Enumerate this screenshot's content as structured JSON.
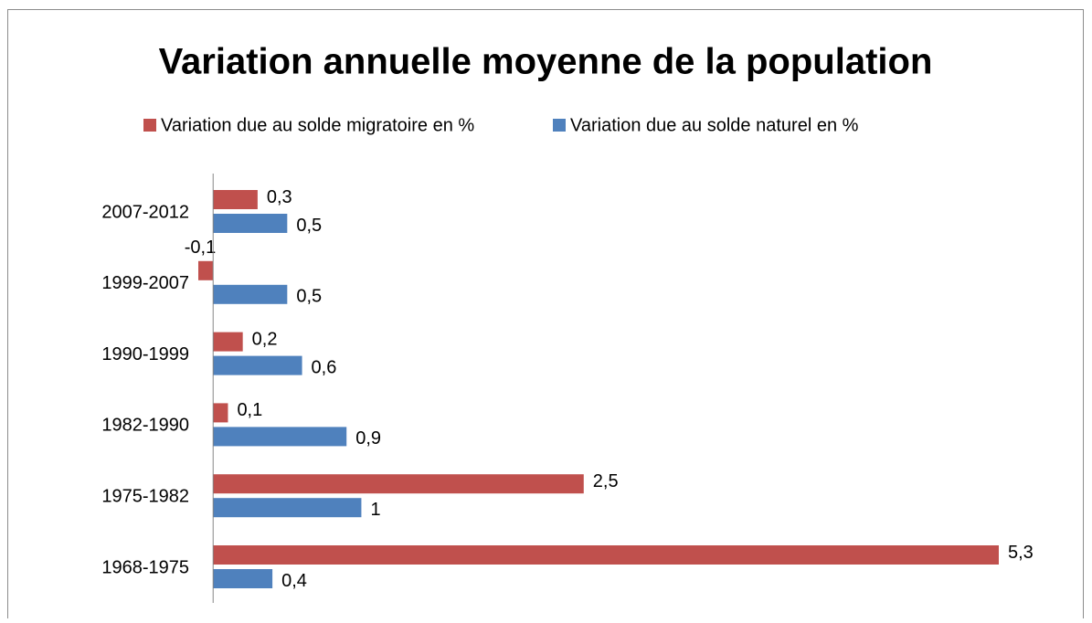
{
  "chart_data": {
    "type": "barh",
    "title": "Variation annuelle moyenne de la population",
    "categories": [
      "2007-2012",
      "1999-2007",
      "1990-1999",
      "1982-1990",
      "1975-1982",
      "1968-1975"
    ],
    "series": [
      {
        "name": "Variation due au solde migratoire en %",
        "color": "#c0504d",
        "values": [
          0.3,
          -0.1,
          0.2,
          0.1,
          2.5,
          5.3
        ],
        "value_labels": [
          "0,3",
          "-0,1",
          "0,2",
          "0,1",
          "2,5",
          "5,3"
        ]
      },
      {
        "name": "Variation due au solde naturel en %",
        "color": "#4f81bd",
        "values": [
          0.5,
          0.5,
          0.6,
          0.9,
          1,
          0.4
        ],
        "value_labels": [
          "0,5",
          "0,5",
          "0,6",
          "0,9",
          "1",
          "0,4"
        ]
      }
    ],
    "legend": "top"
  }
}
